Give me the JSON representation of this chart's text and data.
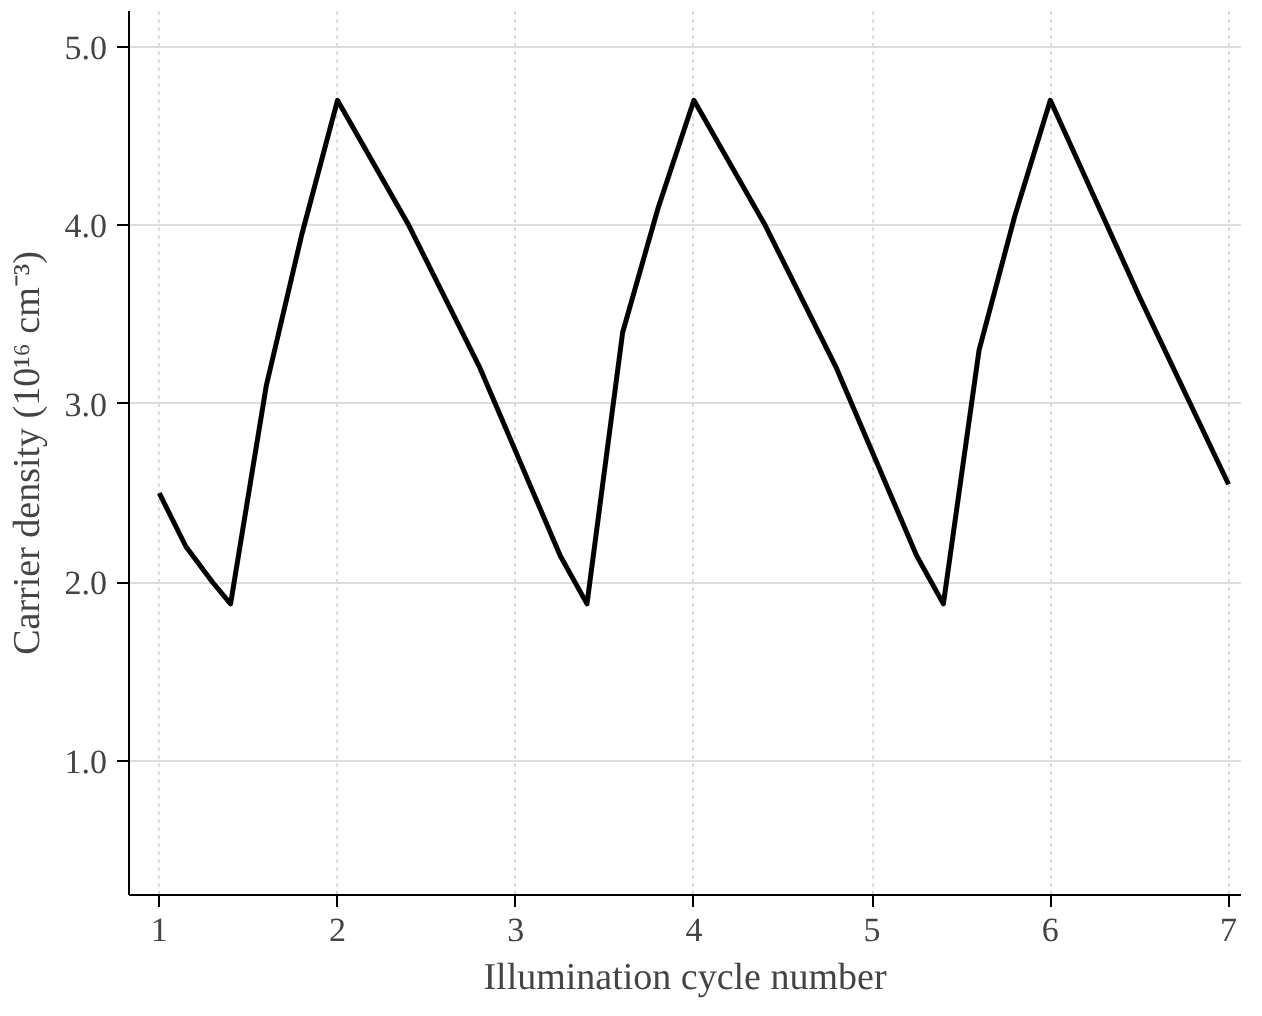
{
  "chart_data": {
    "type": "line",
    "xlabel": "Illumination cycle number",
    "ylabel": "Carrier density (10¹⁶ cm⁻³)",
    "xlim": [
      0.83,
      7.07
    ],
    "ylim": [
      0.25,
      5.2
    ],
    "xticks": [
      1,
      2,
      3,
      4,
      5,
      6,
      7
    ],
    "yticks": [
      {
        "value": 1,
        "label": "1.0"
      },
      {
        "value": 2,
        "label": "2.0"
      },
      {
        "value": 3,
        "label": "3.0"
      },
      {
        "value": 4,
        "label": "4.0"
      },
      {
        "value": 5,
        "label": "5.0"
      }
    ],
    "grid": true,
    "line_style": "solid",
    "marker": "none",
    "series": [
      {
        "color": "#000000",
        "x": [
          1.0,
          1.15,
          1.3,
          1.4,
          1.6,
          1.8,
          2.0,
          2.4,
          2.8,
          3.1,
          3.25,
          3.4,
          3.6,
          3.8,
          4.0,
          4.4,
          4.8,
          5.1,
          5.25,
          5.4,
          5.6,
          5.8,
          6.0,
          6.5,
          7.0
        ],
        "values": [
          2.5,
          2.2,
          2.0,
          1.88,
          3.1,
          3.95,
          4.7,
          4.0,
          3.2,
          2.5,
          2.15,
          1.88,
          3.4,
          4.1,
          4.7,
          4.0,
          3.2,
          2.5,
          2.15,
          1.88,
          3.3,
          4.05,
          4.7,
          3.6,
          2.55
        ]
      }
    ]
  }
}
